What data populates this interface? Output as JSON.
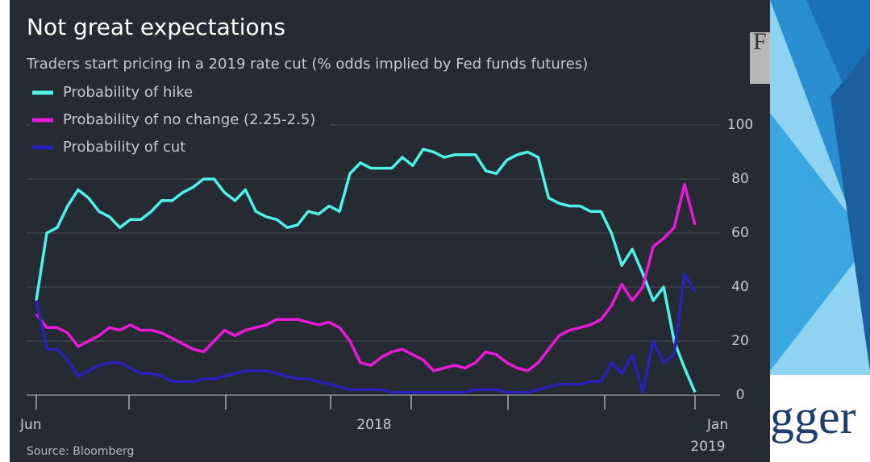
{
  "chart_data": {
    "type": "line",
    "title": "Not great expectations",
    "subtitle": "Traders start pricing in a 2019 rate cut (% odds implied by Fed funds futures)",
    "source": "Source: Bloomberg",
    "categories": [
      "Jun",
      null,
      null,
      null,
      null,
      null,
      null,
      null,
      null,
      null,
      null,
      null,
      null,
      null,
      null,
      null,
      null,
      null,
      null,
      null,
      null,
      null,
      null,
      null,
      null,
      null,
      null,
      null,
      null,
      null,
      null,
      null,
      "2018",
      null,
      null,
      null,
      null,
      null,
      null,
      null,
      null,
      null,
      null,
      null,
      null,
      null,
      null,
      null,
      null,
      null,
      null,
      null,
      null,
      null,
      null,
      null,
      null,
      null,
      null,
      null,
      null,
      null,
      null,
      "Jan"
    ],
    "x_year_label": "2019",
    "series": [
      {
        "name": "Probability of hike",
        "color": "#4ff2e6",
        "values": [
          35,
          60,
          62,
          70,
          76,
          73,
          68,
          66,
          62,
          65,
          65,
          68,
          72,
          72,
          75,
          77,
          80,
          80,
          75,
          72,
          76,
          68,
          66,
          65,
          62,
          63,
          68,
          67,
          70,
          68,
          82,
          86,
          84,
          84,
          84,
          88,
          85,
          91,
          90,
          88,
          89,
          89,
          89,
          83,
          82,
          87,
          89,
          90,
          88,
          73,
          71,
          70,
          70,
          68,
          68,
          60,
          48,
          54,
          45,
          35,
          40,
          20,
          10,
          1
        ]
      },
      {
        "name": "Probability of no change (2.25-2.5)",
        "color": "#e81ad8",
        "values": [
          30,
          25,
          25,
          23,
          18,
          20,
          22,
          25,
          24,
          26,
          24,
          24,
          23,
          21,
          19,
          17,
          16,
          20,
          24,
          22,
          24,
          25,
          26,
          28,
          28,
          28,
          27,
          26,
          27,
          25,
          20,
          12,
          11,
          14,
          16,
          17,
          15,
          13,
          9,
          10,
          11,
          10,
          12,
          16,
          15,
          12,
          10,
          9,
          12,
          17,
          22,
          24,
          25,
          26,
          28,
          33,
          41,
          35,
          40,
          55,
          58,
          62,
          78,
          63
        ]
      },
      {
        "name": "Probability of cut",
        "color": "#2a22b8",
        "values": [
          35,
          17,
          17,
          13,
          7,
          9,
          11,
          12,
          12,
          10,
          8,
          8,
          7,
          5,
          5,
          5,
          6,
          6,
          7,
          8,
          9,
          9,
          9,
          8,
          7,
          6,
          6,
          5,
          4,
          3,
          2,
          2,
          2,
          2,
          1,
          1,
          1,
          1,
          1,
          1,
          1,
          1,
          2,
          2,
          2,
          1,
          1,
          1,
          2,
          3,
          4,
          4,
          4,
          5,
          5,
          12,
          8,
          15,
          1,
          20,
          12,
          15,
          45,
          38
        ]
      }
    ],
    "ylim": [
      0,
      100
    ],
    "yticks": [
      0,
      20,
      40,
      60,
      80,
      100
    ],
    "grid": true
  },
  "slide": {
    "corner_text": "F",
    "logo_text": "gger"
  }
}
